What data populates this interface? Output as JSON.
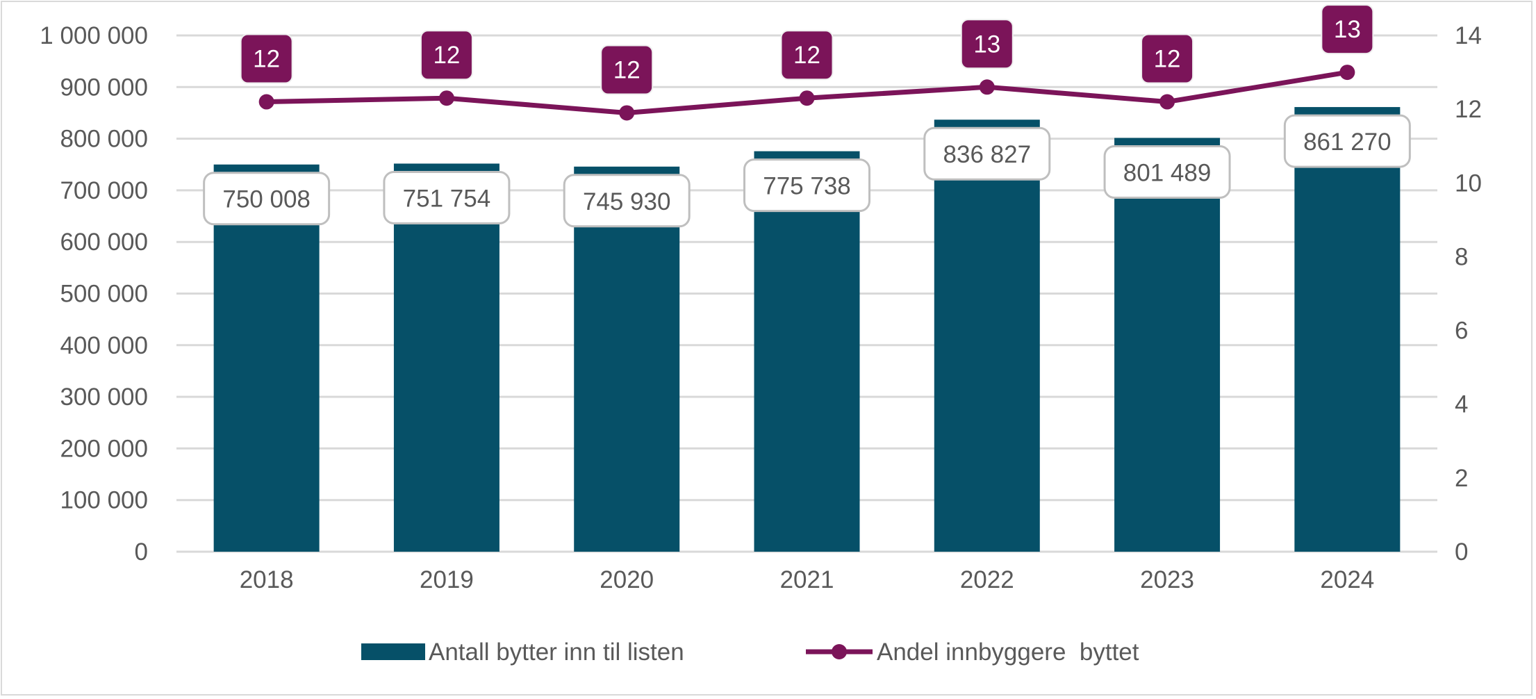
{
  "chart_data": {
    "type": "bar+line",
    "categories": [
      "2018",
      "2019",
      "2020",
      "2021",
      "2022",
      "2023",
      "2024"
    ],
    "series": [
      {
        "name": "Antall bytter inn til listen",
        "type": "bar",
        "axis": "left",
        "values": [
          750008,
          751754,
          745930,
          775738,
          836827,
          801489,
          861270
        ],
        "labels": [
          "750 008",
          "751 754",
          "745 930",
          "775 738",
          "836 827",
          "801 489",
          "861 270"
        ],
        "color": "#065068"
      },
      {
        "name": "Andel innbyggere  byttet",
        "type": "line",
        "axis": "right",
        "values": [
          12.2,
          12.3,
          11.9,
          12.3,
          12.6,
          12.2,
          13.0
        ],
        "labels": [
          "12",
          "12",
          "12",
          "12",
          "13",
          "12",
          "13"
        ],
        "color": "#7b1459"
      }
    ],
    "y_left": {
      "lim": [
        0,
        1000000
      ],
      "ticks": [
        "0",
        "100 000",
        "200 000",
        "300 000",
        "400 000",
        "500 000",
        "600 000",
        "700 000",
        "800 000",
        "900 000",
        "1 000 000"
      ]
    },
    "y_right": {
      "lim": [
        0,
        14
      ],
      "ticks": [
        "0",
        "2",
        "4",
        "6",
        "8",
        "10",
        "12",
        "14"
      ]
    },
    "grid": true,
    "legend": "bottom"
  }
}
